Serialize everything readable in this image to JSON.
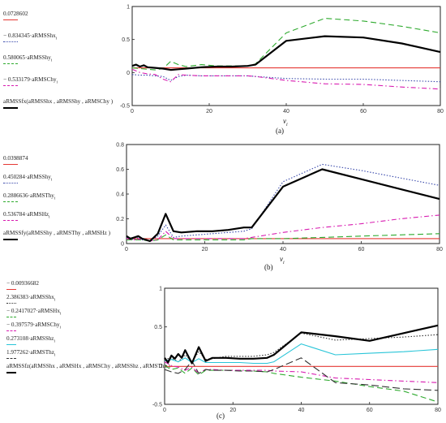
{
  "chart_data": [
    {
      "panel": "(a)",
      "type": "line",
      "xlabel_main": "ν",
      "xlabel_sub": "i",
      "xlim": [
        0,
        80
      ],
      "ylim": [
        -0.5,
        1
      ],
      "xticks": [
        "0",
        "20",
        "40",
        "60",
        "80"
      ],
      "yticks": [
        "-0.5",
        "0",
        "0.5",
        "1"
      ],
      "legend": [
        {
          "text": "0.0728602",
          "color": "#e53935",
          "style": "solid"
        },
        {
          "text": "− 0.834345·aRMSShx",
          "sub": "i",
          "color": "#3949ab",
          "style": "dotted"
        },
        {
          "text": "0.580065·aRMSShy",
          "sub": "i",
          "color": "#2eaa2e",
          "style": "dashed"
        },
        {
          "text": "− 0.533179·aRMSChy",
          "sub": "i",
          "color": "#d81bb0",
          "style": "dashdot"
        },
        {
          "text": "aRMSSfx(aRMSShx , aRMSShy , aRMSChy )",
          "color": "#000000",
          "style": "thick"
        }
      ],
      "series": [
        {
          "color": "#e53935",
          "style": "solid",
          "x": [
            0,
            80
          ],
          "values": [
            0.07,
            0.07
          ]
        },
        {
          "color": "#3949ab",
          "style": "dotted",
          "x": [
            0,
            2,
            4,
            6,
            8,
            10,
            12,
            14,
            18,
            22,
            26,
            30,
            32,
            40,
            50,
            60,
            70,
            80
          ],
          "values": [
            -0.03,
            -0.04,
            -0.04,
            -0.05,
            -0.06,
            -0.12,
            -0.06,
            -0.04,
            -0.05,
            -0.05,
            -0.05,
            -0.05,
            -0.06,
            -0.09,
            -0.1,
            -0.1,
            -0.12,
            -0.14
          ]
        },
        {
          "color": "#2eaa2e",
          "style": "dashed",
          "x": [
            0,
            2,
            4,
            6,
            8,
            10,
            12,
            14,
            18,
            22,
            26,
            30,
            32,
            40,
            50,
            60,
            70,
            80
          ],
          "values": [
            0.07,
            0.06,
            0.05,
            0.04,
            0.06,
            0.17,
            0.12,
            0.09,
            0.12,
            0.1,
            0.1,
            0.1,
            0.13,
            0.6,
            0.82,
            0.78,
            0.7,
            0.6
          ]
        },
        {
          "color": "#d81bb0",
          "style": "dashdot",
          "x": [
            0,
            2,
            4,
            6,
            8,
            10,
            12,
            14,
            18,
            22,
            26,
            30,
            32,
            40,
            50,
            60,
            70,
            80
          ],
          "values": [
            0.05,
            0.0,
            -0.02,
            -0.03,
            -0.1,
            -0.14,
            -0.03,
            -0.04,
            -0.05,
            -0.05,
            -0.05,
            -0.05,
            -0.06,
            -0.12,
            -0.17,
            -0.18,
            -0.22,
            -0.25
          ]
        },
        {
          "color": "#000000",
          "style": "thick",
          "x": [
            0,
            1,
            2,
            3,
            4,
            6,
            8,
            10,
            12,
            14,
            18,
            22,
            26,
            30,
            32,
            40,
            50,
            60,
            70,
            80
          ],
          "values": [
            0.1,
            0.12,
            0.09,
            0.11,
            0.08,
            0.07,
            0.06,
            0.04,
            0.05,
            0.06,
            0.08,
            0.09,
            0.09,
            0.1,
            0.12,
            0.48,
            0.55,
            0.53,
            0.44,
            0.31
          ]
        }
      ]
    },
    {
      "panel": "(b)",
      "type": "line",
      "xlabel_main": "ν",
      "xlabel_sub": "i",
      "xlim": [
        0,
        80
      ],
      "ylim": [
        0,
        0.8
      ],
      "xticks": [
        "0",
        "20",
        "40",
        "60",
        "80"
      ],
      "yticks": [
        "0",
        "0.2",
        "0.4",
        "0.6",
        "0.8"
      ],
      "legend": [
        {
          "text": "0.0398874",
          "color": "#e53935",
          "style": "solid"
        },
        {
          "text": "0.450284·aRMSShy",
          "sub": "i",
          "color": "#3949ab",
          "style": "dotted"
        },
        {
          "text": "0.2886636·aRMSThy",
          "sub": "i",
          "color": "#2eaa2e",
          "style": "dashed"
        },
        {
          "text": "0.536784·aRMSHz",
          "sub": "i",
          "color": "#d81bb0",
          "style": "dashdot"
        },
        {
          "text": "aRMSSfy(aRMSShy , aRMSThy , aRMSHz )",
          "color": "#000000",
          "style": "thick"
        }
      ],
      "series": [
        {
          "color": "#e53935",
          "style": "solid",
          "x": [
            0,
            80
          ],
          "values": [
            0.04,
            0.04
          ]
        },
        {
          "color": "#3949ab",
          "style": "dotted",
          "x": [
            0,
            1,
            2,
            3,
            4,
            6,
            8,
            10,
            12,
            14,
            18,
            22,
            26,
            30,
            32,
            40,
            50,
            60,
            70,
            80
          ],
          "values": [
            0.05,
            0.04,
            0.03,
            0.05,
            0.03,
            0.02,
            0.06,
            0.15,
            0.05,
            0.06,
            0.07,
            0.08,
            0.09,
            0.1,
            0.12,
            0.5,
            0.64,
            0.59,
            0.53,
            0.47
          ]
        },
        {
          "color": "#2eaa2e",
          "style": "dashed",
          "x": [
            0,
            2,
            4,
            6,
            8,
            10,
            12,
            14,
            18,
            22,
            26,
            30,
            32,
            40,
            50,
            60,
            70,
            80
          ],
          "values": [
            0.03,
            0.03,
            0.03,
            0.02,
            0.03,
            0.07,
            0.03,
            0.03,
            0.03,
            0.03,
            0.03,
            0.03,
            0.04,
            0.04,
            0.05,
            0.06,
            0.07,
            0.08
          ]
        },
        {
          "color": "#d81bb0",
          "style": "dashdot",
          "x": [
            0,
            2,
            4,
            6,
            8,
            10,
            12,
            14,
            18,
            22,
            26,
            30,
            32,
            40,
            50,
            60,
            70,
            80
          ],
          "values": [
            0.04,
            0.03,
            0.04,
            0.02,
            0.03,
            0.1,
            0.04,
            0.04,
            0.04,
            0.04,
            0.04,
            0.04,
            0.05,
            0.09,
            0.13,
            0.16,
            0.2,
            0.23
          ]
        },
        {
          "color": "#000000",
          "style": "thick",
          "x": [
            0,
            1,
            2,
            3,
            4,
            6,
            8,
            10,
            12,
            14,
            18,
            22,
            26,
            30,
            32,
            40,
            50,
            60,
            70,
            80
          ],
          "values": [
            0.06,
            0.04,
            0.05,
            0.06,
            0.04,
            0.02,
            0.08,
            0.24,
            0.1,
            0.09,
            0.1,
            0.1,
            0.11,
            0.13,
            0.13,
            0.46,
            0.6,
            0.52,
            0.44,
            0.36
          ]
        }
      ]
    },
    {
      "panel": "(c)",
      "type": "line",
      "xlabel_main": "",
      "xlabel_sub": "",
      "xlim": [
        0,
        80
      ],
      "ylim": [
        -0.5,
        1
      ],
      "xticks": [
        "0",
        "20",
        "40",
        "60",
        "80"
      ],
      "yticks": [
        "-0.5",
        "0",
        "0.5",
        "1"
      ],
      "legend": [
        {
          "text": "− 0.00936682",
          "color": "#e53935",
          "style": "solid"
        },
        {
          "text": "2.386383·aRMSShx",
          "sub": "i",
          "color": "#333333",
          "style": "dotted"
        },
        {
          "text": "− 0.2417027·aRMSHx",
          "sub": "i",
          "color": "#2eaa2e",
          "style": "dashed"
        },
        {
          "text": "− 0.397579·aRMSChy",
          "sub": "i",
          "color": "#d81bb0",
          "style": "dashdot"
        },
        {
          "text": "0.273108·aRMSShz",
          "sub": "i",
          "color": "#29c5d8",
          "style": "solid"
        },
        {
          "text": "1.977262·aRMSThz",
          "sub": "i",
          "color": "#333333",
          "style": "longdash"
        },
        {
          "text": "aRMSSfz(aRMSShx , aRMSHx , aRMSChy , aRMSShz , aRMSThz )",
          "color": "#000000",
          "style": "thick"
        }
      ],
      "series": [
        {
          "color": "#e53935",
          "style": "solid",
          "x": [
            0,
            80
          ],
          "values": [
            -0.01,
            -0.01
          ]
        },
        {
          "color": "#333333",
          "style": "dotted",
          "x": [
            0,
            2,
            4,
            6,
            8,
            10,
            12,
            14,
            18,
            22,
            26,
            30,
            32,
            40,
            50,
            60,
            70,
            80
          ],
          "values": [
            0.08,
            0.1,
            0.05,
            0.14,
            0.05,
            0.18,
            0.08,
            0.09,
            0.12,
            0.12,
            0.12,
            0.14,
            0.17,
            0.42,
            0.33,
            0.35,
            0.37,
            0.4
          ]
        },
        {
          "color": "#2eaa2e",
          "style": "dashed",
          "x": [
            0,
            2,
            4,
            6,
            8,
            10,
            12,
            14,
            18,
            22,
            26,
            30,
            32,
            40,
            50,
            60,
            70,
            80
          ],
          "values": [
            0.0,
            -0.05,
            -0.03,
            -0.1,
            -0.03,
            -0.12,
            -0.06,
            -0.06,
            -0.06,
            -0.06,
            -0.07,
            -0.08,
            -0.1,
            -0.15,
            -0.2,
            -0.27,
            -0.33,
            -0.47
          ]
        },
        {
          "color": "#d81bb0",
          "style": "dashdot",
          "x": [
            0,
            2,
            4,
            6,
            8,
            10,
            12,
            14,
            18,
            22,
            26,
            30,
            32,
            40,
            50,
            60,
            70,
            80
          ],
          "values": [
            0.05,
            0.0,
            -0.02,
            -0.06,
            -0.02,
            -0.1,
            -0.05,
            -0.05,
            -0.06,
            -0.06,
            -0.06,
            -0.06,
            -0.07,
            -0.08,
            -0.16,
            -0.18,
            -0.2,
            -0.22
          ]
        },
        {
          "color": "#29c5d8",
          "style": "solid",
          "x": [
            0,
            2,
            4,
            6,
            8,
            10,
            12,
            14,
            18,
            22,
            26,
            30,
            32,
            40,
            50,
            60,
            70,
            80
          ],
          "values": [
            0.06,
            0.08,
            0.05,
            0.1,
            0.04,
            0.09,
            0.04,
            0.04,
            0.04,
            0.04,
            0.03,
            0.03,
            0.05,
            0.28,
            0.14,
            0.16,
            0.18,
            0.21
          ]
        },
        {
          "color": "#333333",
          "style": "longdash",
          "x": [
            0,
            2,
            4,
            6,
            8,
            10,
            12,
            14,
            18,
            22,
            26,
            30,
            32,
            40,
            50,
            60,
            70,
            80
          ],
          "values": [
            -0.05,
            -0.08,
            -0.1,
            -0.05,
            0.06,
            -0.1,
            -0.05,
            -0.06,
            -0.06,
            -0.07,
            -0.07,
            -0.08,
            -0.05,
            0.1,
            -0.22,
            -0.25,
            -0.3,
            -0.32
          ]
        },
        {
          "color": "#000000",
          "style": "thick",
          "x": [
            0,
            1,
            2,
            3,
            4,
            5,
            6,
            8,
            10,
            12,
            14,
            18,
            22,
            26,
            30,
            32,
            40,
            50,
            60,
            70,
            80
          ],
          "values": [
            0.1,
            0.04,
            0.13,
            0.09,
            0.15,
            0.1,
            0.2,
            0.03,
            0.24,
            0.06,
            0.1,
            0.1,
            0.09,
            0.09,
            0.1,
            0.14,
            0.43,
            0.38,
            0.32,
            0.42,
            0.52
          ]
        }
      ]
    }
  ]
}
